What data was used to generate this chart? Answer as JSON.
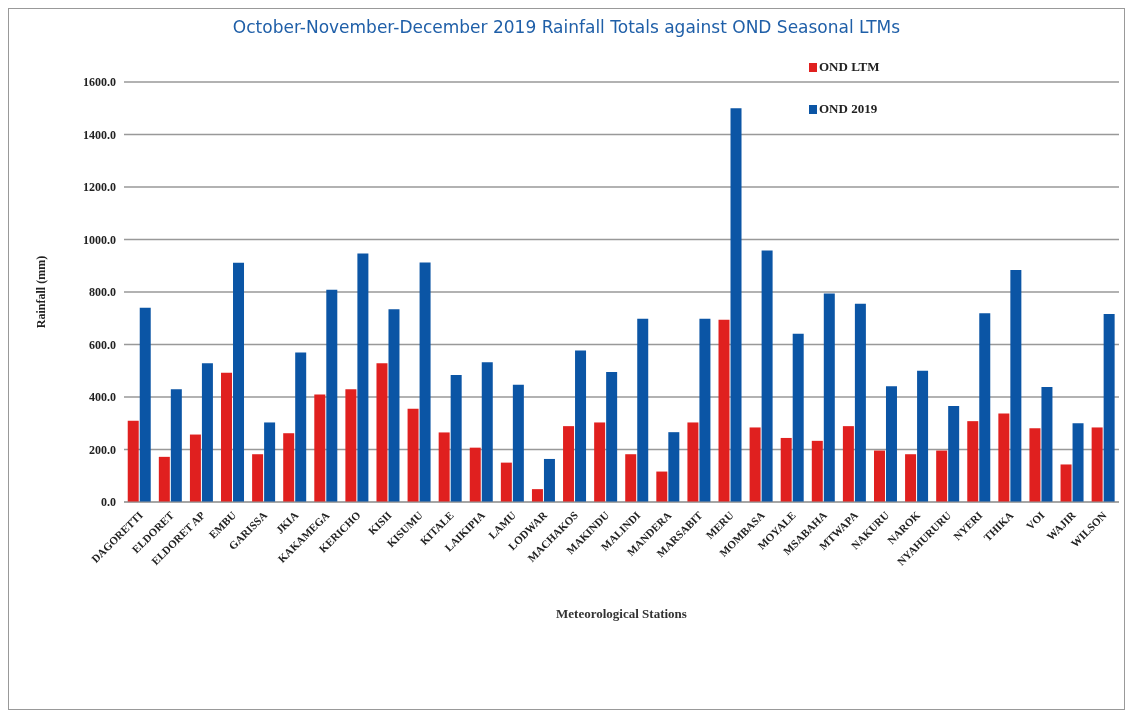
{
  "chart_data": {
    "type": "bar",
    "title": "October-November-December 2019 Rainfall Totals against OND Seasonal LTMs",
    "xlabel": "Meteorological Stations",
    "ylabel": "Rainfall (mm)",
    "categories": [
      "DAGORETTI",
      "ELDORET",
      "ELDORET AP",
      "EMBU",
      "GARISSA",
      "JKIA",
      "KAKAMEGA",
      "KERICHO",
      "KISII",
      "KISUMU",
      "KITALE",
      "LAIKIPIA",
      "LAMU",
      "LODWAR",
      "MACHAKOS",
      "MAKINDU",
      "MALINDI",
      "MANDERA",
      "MARSABIT",
      "MERU",
      "MOMBASA",
      "MOYALE",
      "MSABAHA",
      "MTWAPA",
      "NAKURU",
      "NAROK",
      "NYAHURURU",
      "NYERI",
      "THIKA",
      "VOI",
      "WAJIR",
      "WILSON"
    ],
    "series": [
      {
        "name": "OND LTM",
        "color": "#e0201f",
        "values": [
          310,
          172,
          257,
          492,
          182,
          262,
          410,
          430,
          529,
          355,
          265,
          207,
          150,
          49,
          289,
          303,
          182,
          116,
          303,
          694,
          284,
          244,
          233,
          289,
          196,
          182,
          196,
          308,
          337,
          281,
          143,
          284
        ]
      },
      {
        "name": "OND 2019",
        "color": "#0b55a5",
        "values": [
          740,
          430,
          529,
          911,
          303,
          570,
          809,
          947,
          734,
          912,
          484,
          532,
          447,
          164,
          577,
          495,
          698,
          266,
          698,
          1500,
          958,
          641,
          794,
          755,
          441,
          500,
          366,
          719,
          884,
          438,
          300,
          716
        ]
      }
    ],
    "ylim": [
      0,
      1600
    ],
    "yticks": [
      {
        "value": 0,
        "label": "0.0"
      },
      {
        "value": 200,
        "label": "200.0"
      },
      {
        "value": 400,
        "label": "400.0"
      },
      {
        "value": 600,
        "label": "600.0"
      },
      {
        "value": 800,
        "label": "800.0"
      },
      {
        "value": 1000,
        "label": "1000.0"
      },
      {
        "value": 1200,
        "label": "1200.0"
      },
      {
        "value": 1400,
        "label": "1400.0"
      },
      {
        "value": 1600,
        "label": "1600.0"
      }
    ],
    "grid": "y",
    "legend": "top right"
  }
}
